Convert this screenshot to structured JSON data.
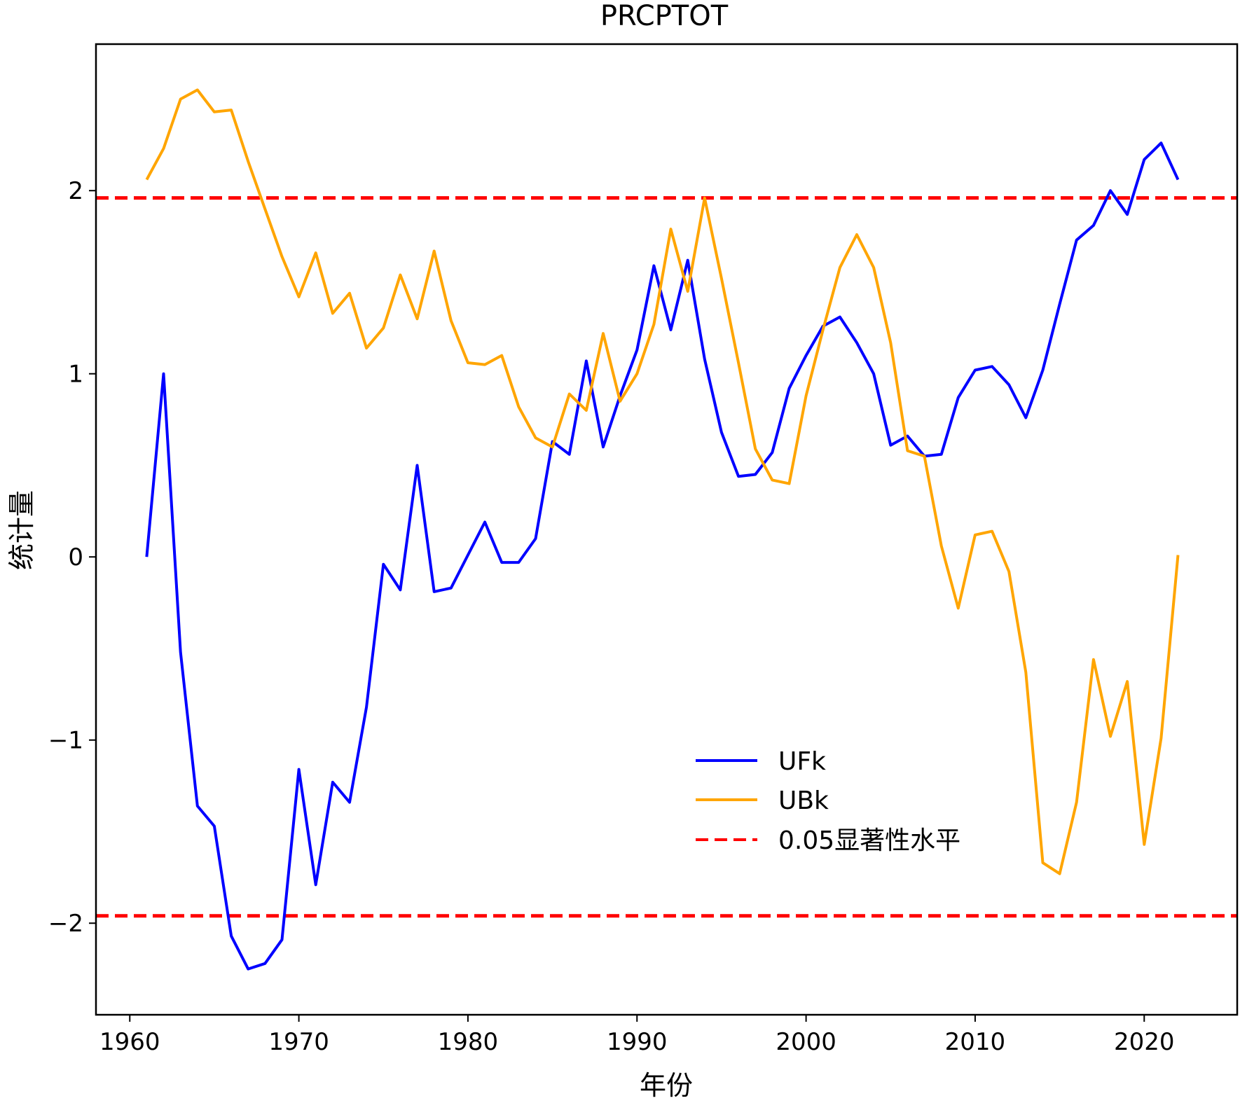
{
  "chart_data": {
    "type": "line",
    "title": "PRCPTOT",
    "xlabel": "年份",
    "ylabel": "统计量",
    "xlim": [
      1958,
      2025.5
    ],
    "ylim": [
      -2.5,
      2.8
    ],
    "xticks": [
      1960,
      1970,
      1980,
      1990,
      2000,
      2010,
      2020
    ],
    "yticks": [
      -2,
      -1,
      0,
      1,
      2
    ],
    "ytick_labels": [
      "−2",
      "−1",
      "0",
      "1",
      "2"
    ],
    "grid": false,
    "legend_position": "lower-center",
    "x": [
      1961,
      1962,
      1963,
      1964,
      1965,
      1966,
      1967,
      1968,
      1969,
      1970,
      1971,
      1972,
      1973,
      1974,
      1975,
      1976,
      1977,
      1978,
      1979,
      1980,
      1981,
      1982,
      1983,
      1984,
      1985,
      1986,
      1987,
      1988,
      1989,
      1990,
      1991,
      1992,
      1993,
      1994,
      1995,
      1996,
      1997,
      1998,
      1999,
      2000,
      2001,
      2002,
      2003,
      2004,
      2005,
      2006,
      2007,
      2008,
      2009,
      2010,
      2011,
      2012,
      2013,
      2014,
      2015,
      2016,
      2017,
      2018,
      2019,
      2020,
      2021,
      2022
    ],
    "series": [
      {
        "name": "UFk",
        "color": "#0000ff",
        "style": "solid",
        "values": [
          0.0,
          1.0,
          -0.52,
          -1.36,
          -1.47,
          -2.07,
          -2.25,
          -2.22,
          -2.09,
          -1.16,
          -1.79,
          -1.23,
          -1.34,
          -0.82,
          -0.04,
          -0.18,
          0.5,
          -0.19,
          -0.17,
          0.01,
          0.19,
          -0.03,
          -0.03,
          0.1,
          0.63,
          0.56,
          1.07,
          0.6,
          0.88,
          1.13,
          1.59,
          1.24,
          1.62,
          1.08,
          0.68,
          0.44,
          0.45,
          0.57,
          0.92,
          1.1,
          1.26,
          1.31,
          1.17,
          1.0,
          0.61,
          0.66,
          0.55,
          0.56,
          0.87,
          1.02,
          1.04,
          0.94,
          0.76,
          1.02,
          1.38,
          1.73,
          1.81,
          2.0,
          1.87,
          2.17,
          2.26,
          2.06
        ]
      },
      {
        "name": "UBk",
        "color": "#ffa500",
        "style": "solid",
        "values": [
          2.06,
          2.23,
          2.5,
          2.55,
          2.43,
          2.44,
          2.16,
          1.9,
          1.64,
          1.42,
          1.66,
          1.33,
          1.44,
          1.14,
          1.25,
          1.54,
          1.3,
          1.67,
          1.29,
          1.06,
          1.05,
          1.1,
          0.82,
          0.65,
          0.6,
          0.89,
          0.8,
          1.22,
          0.85,
          1.0,
          1.27,
          1.79,
          1.45,
          1.96,
          1.52,
          1.06,
          0.59,
          0.42,
          0.4,
          0.88,
          1.24,
          1.58,
          1.76,
          1.58,
          1.17,
          0.58,
          0.55,
          0.06,
          -0.28,
          0.12,
          0.14,
          -0.08,
          -0.63,
          -1.67,
          -1.73,
          -1.34,
          -0.56,
          -0.98,
          -0.68,
          -1.57,
          -0.99,
          0.01
        ]
      }
    ],
    "reference_lines": {
      "name": "0.05显著性水平",
      "color": "#ff0000",
      "style": "dashed",
      "values": [
        1.96,
        -1.96
      ]
    }
  }
}
